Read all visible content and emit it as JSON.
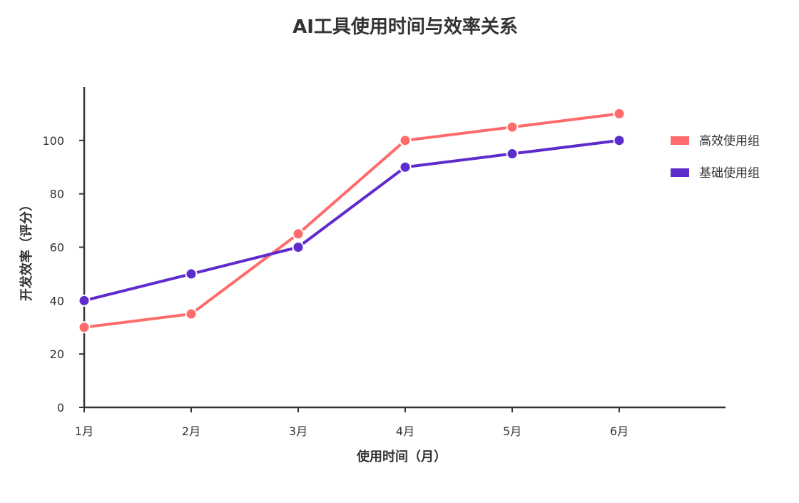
{
  "chart_data": {
    "type": "line",
    "title": "AI工具使用时间与效率关系",
    "xlabel": "使用时间（月）",
    "ylabel": "开发效率（评分）",
    "categories": [
      "1月",
      "2月",
      "3月",
      "4月",
      "5月",
      "6月"
    ],
    "y_ticks": [
      "0",
      "20",
      "40",
      "60",
      "80",
      "100"
    ],
    "ylim": [
      0,
      120
    ],
    "grid": false,
    "legend_position": "right",
    "series": [
      {
        "name": "高效使用组",
        "values": [
          30,
          35,
          65,
          100,
          105,
          110
        ],
        "color": "#ff6b6b"
      },
      {
        "name": "基础使用组",
        "values": [
          40,
          50,
          60,
          90,
          95,
          100
        ],
        "color": "#5e2bcc"
      }
    ]
  }
}
